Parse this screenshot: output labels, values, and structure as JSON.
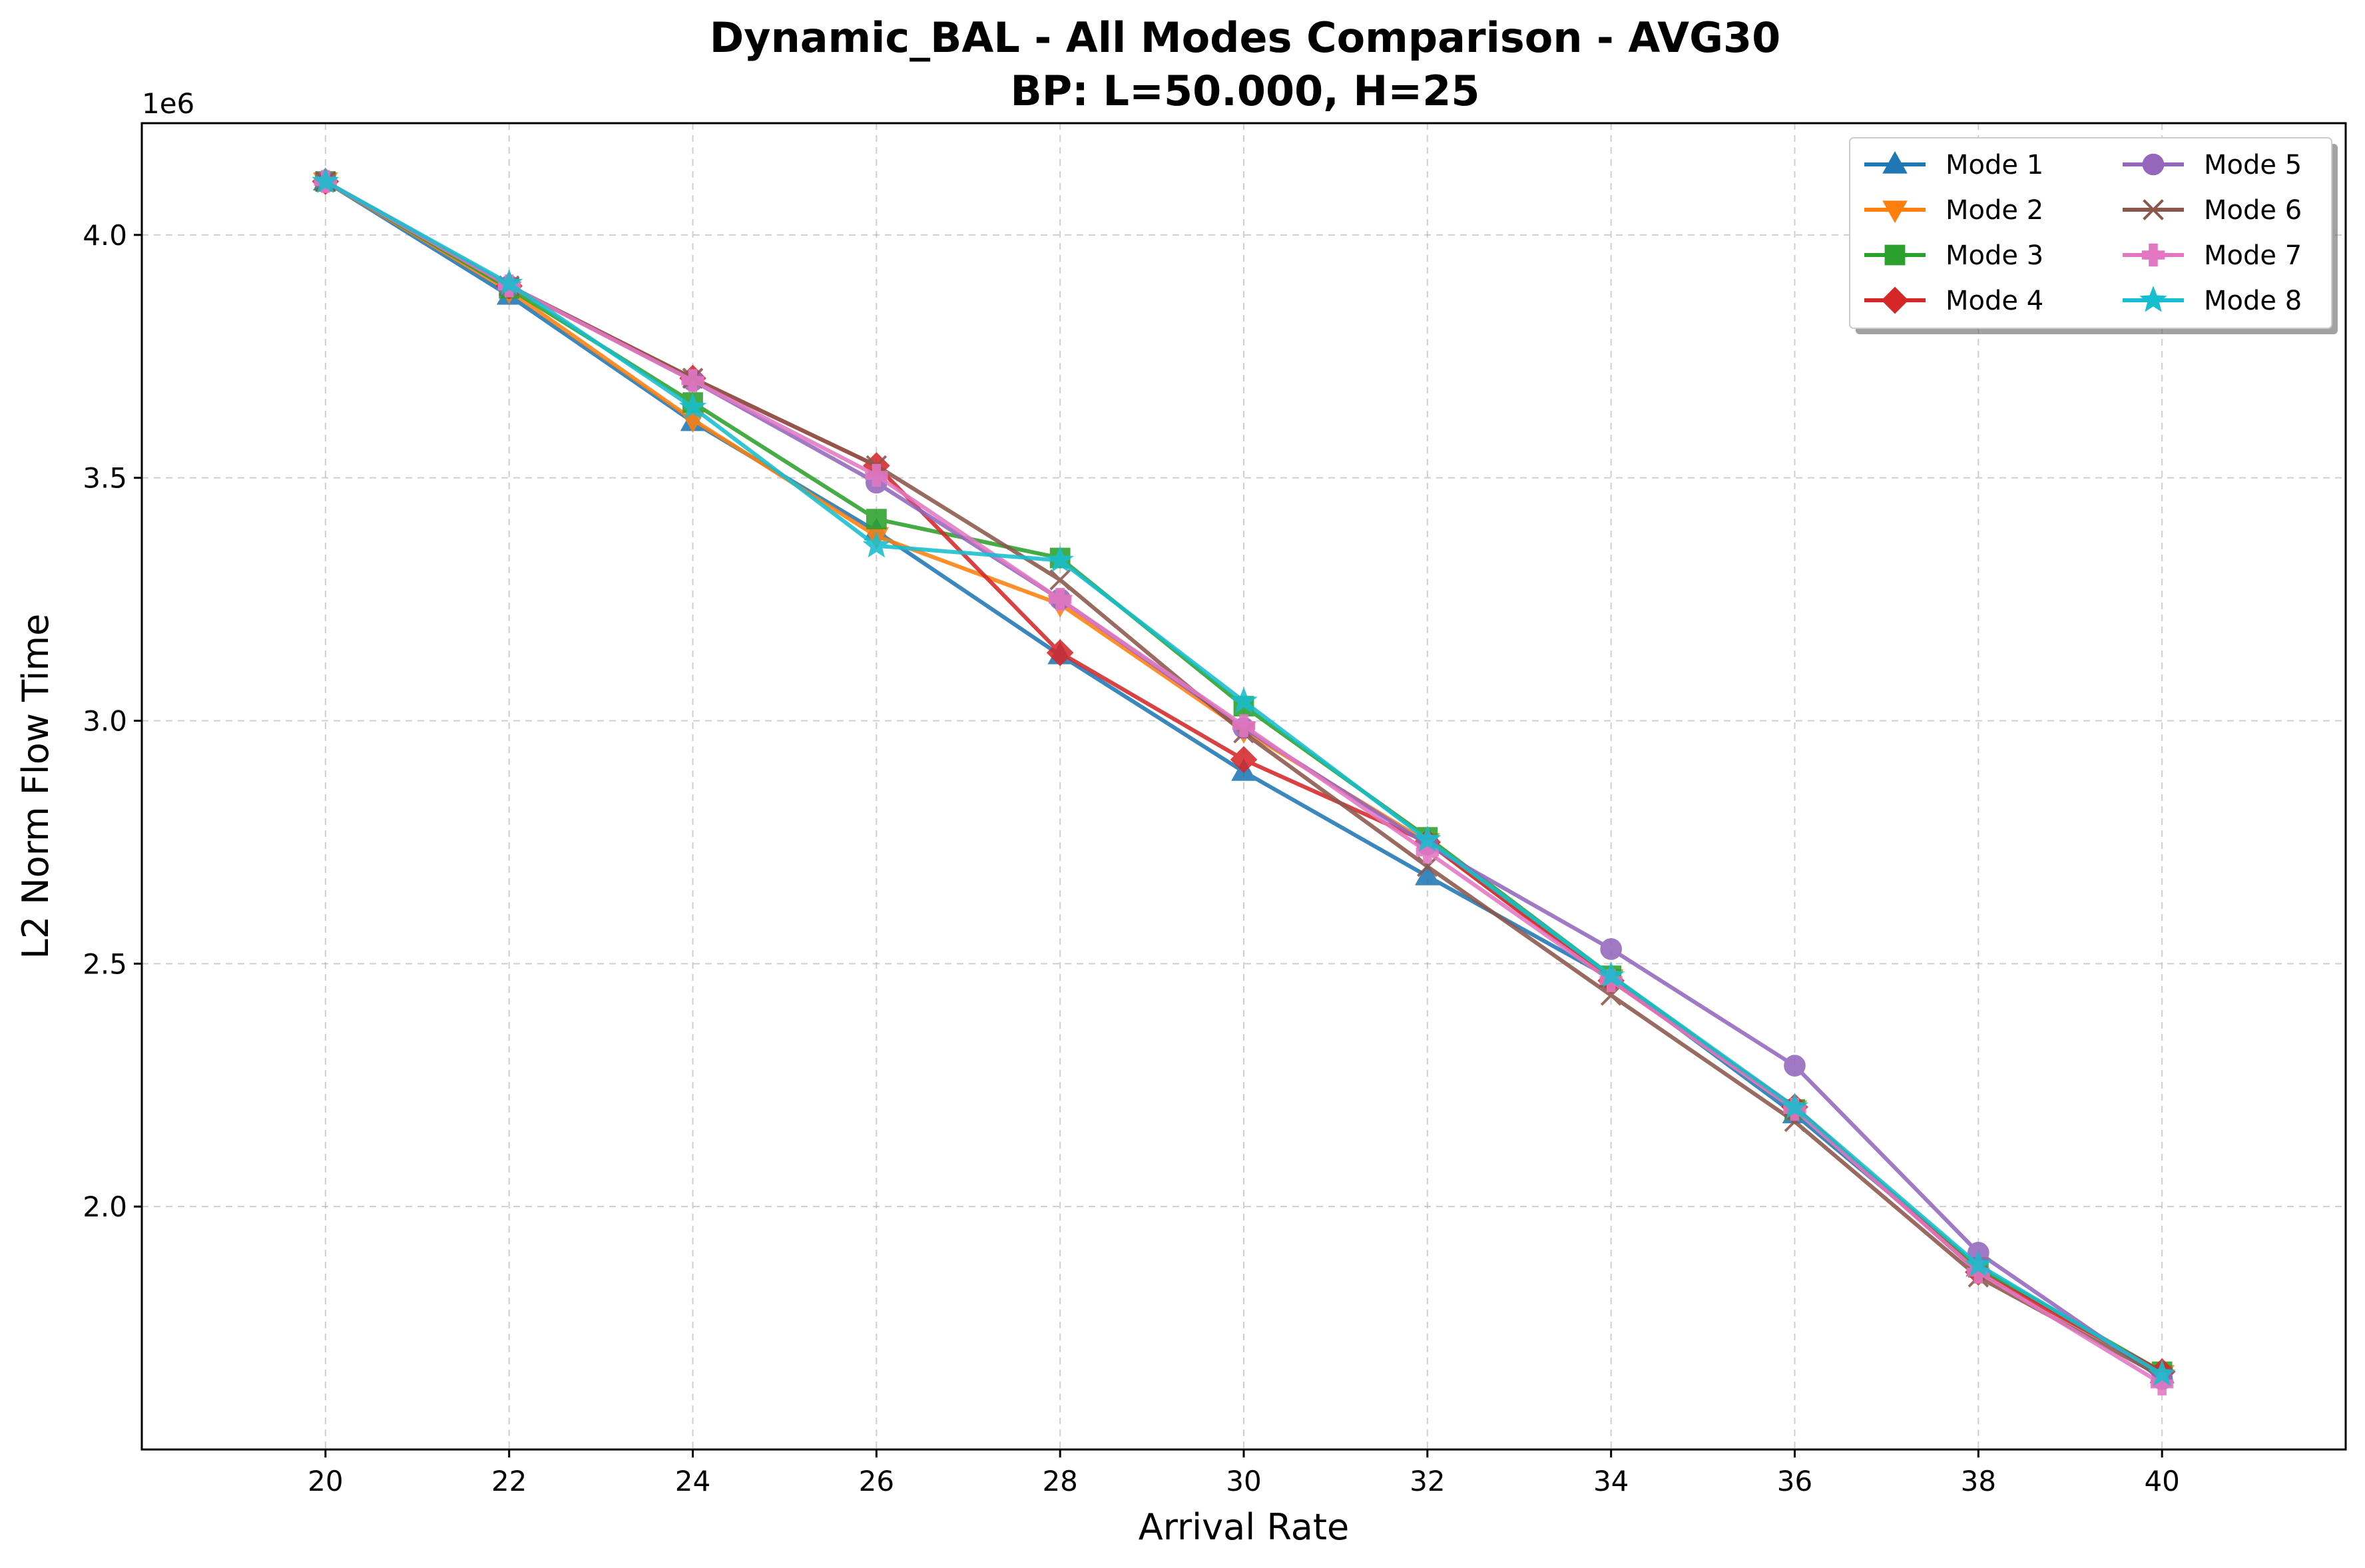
{
  "chart_data": {
    "type": "line",
    "title": "Dynamic_BAL - All Modes Comparison - AVG30",
    "subtitle": "BP: L=50.000, H=25",
    "xlabel": "Arrival Rate",
    "ylabel": "L2 Norm Flow Time",
    "y_multiplier_label": "1e6",
    "x": [
      20,
      22,
      24,
      26,
      28,
      30,
      32,
      34,
      36,
      38,
      40
    ],
    "x_ticks": [
      "20",
      "22",
      "24",
      "26",
      "28",
      "30",
      "32",
      "34",
      "36",
      "38",
      "40"
    ],
    "y_ticks": [
      "2.0",
      "2.5",
      "3.0",
      "3.5",
      "4.0"
    ],
    "xlim": [
      18,
      42
    ],
    "ylim": [
      1.5,
      4.23
    ],
    "grid": true,
    "legend_position": "top-right",
    "legend_columns": 2,
    "series": [
      {
        "name": "Mode 1",
        "color": "#1f77b4",
        "marker": "triangle-up",
        "values": [
          4.11,
          3.875,
          3.615,
          3.39,
          3.135,
          2.895,
          2.68,
          2.47,
          2.19,
          1.875,
          1.655
        ]
      },
      {
        "name": "Mode 2",
        "color": "#ff7f0e",
        "marker": "triangle-down",
        "values": [
          4.11,
          3.885,
          3.62,
          3.38,
          3.24,
          2.98,
          2.75,
          2.47,
          2.2,
          1.875,
          1.655
        ]
      },
      {
        "name": "Mode 3",
        "color": "#2ca02c",
        "marker": "square",
        "values": [
          4.11,
          3.89,
          3.655,
          3.415,
          3.335,
          3.03,
          2.76,
          2.475,
          2.2,
          1.875,
          1.66
        ]
      },
      {
        "name": "Mode 4",
        "color": "#d62728",
        "marker": "diamond",
        "values": [
          4.11,
          3.895,
          3.705,
          3.525,
          3.14,
          2.92,
          2.75,
          2.465,
          2.205,
          1.865,
          1.66
        ]
      },
      {
        "name": "Mode 5",
        "color": "#9467bd",
        "marker": "circle",
        "values": [
          4.11,
          3.895,
          3.7,
          3.49,
          3.25,
          2.985,
          2.745,
          2.53,
          2.29,
          1.905,
          1.645
        ]
      },
      {
        "name": "Mode 6",
        "color": "#8c564b",
        "marker": "x",
        "values": [
          4.11,
          3.895,
          3.705,
          3.525,
          3.29,
          2.975,
          2.7,
          2.435,
          2.175,
          1.855,
          1.65
        ]
      },
      {
        "name": "Mode 7",
        "color": "#e377c2",
        "marker": "plus",
        "values": [
          4.11,
          3.895,
          3.7,
          3.505,
          3.25,
          2.99,
          2.73,
          2.465,
          2.2,
          1.865,
          1.635
        ]
      },
      {
        "name": "Mode 8",
        "color": "#17becf",
        "marker": "star",
        "values": [
          4.11,
          3.9,
          3.645,
          3.36,
          3.33,
          3.04,
          2.755,
          2.475,
          2.205,
          1.88,
          1.655
        ]
      }
    ]
  }
}
